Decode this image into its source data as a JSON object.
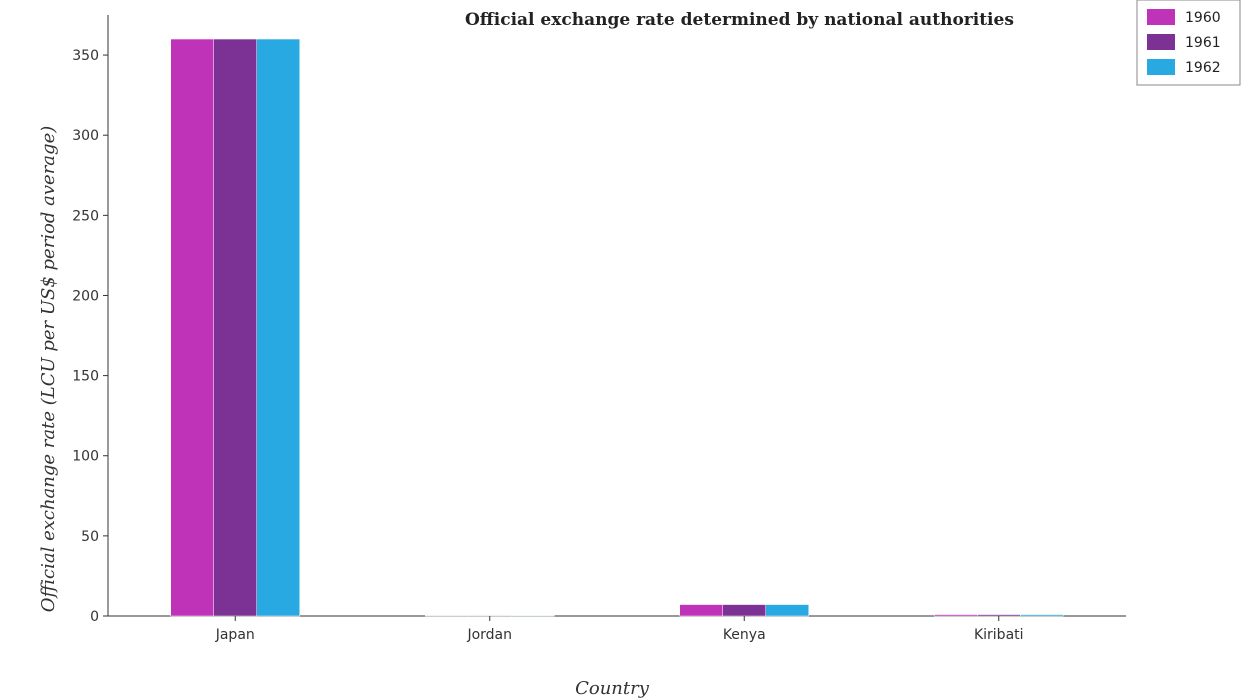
{
  "chart_data": {
    "type": "bar",
    "title": "Official exchange rate determined by national authorities",
    "xlabel": "Country",
    "ylabel": "Official exchange rate (LCU per US$ period average)",
    "categories": [
      "Japan",
      "Jordan",
      "Kenya",
      "Kiribati"
    ],
    "series": [
      {
        "name": "1960",
        "color": "#bf33b8",
        "values": [
          360,
          0.357,
          7.143,
          0.893
        ]
      },
      {
        "name": "1961",
        "color": "#7b3294",
        "values": [
          360,
          0.357,
          7.143,
          0.893
        ]
      },
      {
        "name": "1962",
        "color": "#29a9e1",
        "values": [
          360,
          0.357,
          7.143,
          0.893
        ]
      }
    ],
    "ylim": [
      0,
      375
    ],
    "yticks": [
      0,
      50,
      100,
      150,
      200,
      250,
      300,
      350
    ],
    "legend_position": "top-right",
    "grid": false
  }
}
